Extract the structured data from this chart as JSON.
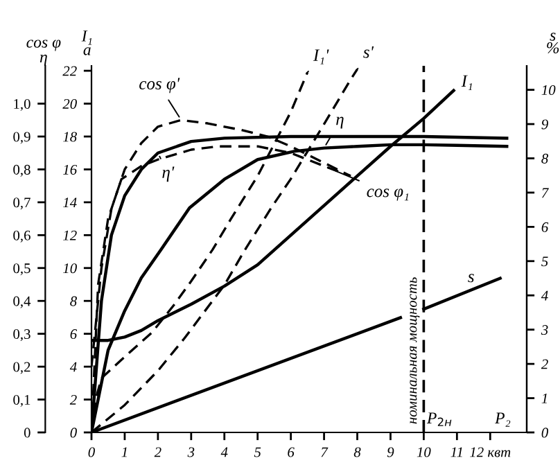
{
  "chart_data": {
    "type": "line",
    "xlim": [
      0,
      13.1
    ],
    "xticks": [
      0,
      1,
      2,
      3,
      4,
      5,
      6,
      7,
      8,
      9,
      10,
      11,
      {
        "value": 12,
        "label": "12 квт"
      }
    ],
    "ylabel": "I₁\nа",
    "ylim": [
      0,
      22.3
    ],
    "yticks": [
      0,
      2,
      4,
      6,
      8,
      10,
      12,
      14,
      16,
      18,
      20,
      22
    ],
    "y2label": "s\n%",
    "y2lim": [
      0,
      10.7
    ],
    "y2ticks": [
      0,
      1,
      2,
      3,
      4,
      5,
      6,
      7,
      8,
      9,
      10
    ],
    "y3label": "cos φ\nη",
    "y3lim": [
      0,
      1.115
    ],
    "y3ticks": [
      0,
      {
        "value": 0.1,
        "label": "0,1"
      },
      {
        "value": 0.2,
        "label": "0,2"
      },
      {
        "value": 0.3,
        "label": "0,3"
      },
      {
        "value": 0.4,
        "label": "0,4"
      },
      {
        "value": 0.5,
        "label": "0,5"
      },
      {
        "value": 0.6,
        "label": "0,6"
      },
      {
        "value": 0.7,
        "label": "0,7"
      },
      {
        "value": 0.8,
        "label": "0,8"
      },
      {
        "value": 0.9,
        "label": "0,9"
      },
      {
        "value": 1.0,
        "label": "1,0"
      }
    ],
    "grid": false,
    "marker": "none",
    "series": [
      {
        "name": "I₁",
        "color": "#000000",
        "line_style": "solid",
        "x": [
          0,
          0.5,
          1,
          1.5,
          2,
          3,
          4,
          5,
          6,
          7,
          8,
          9,
          10,
          10.9
        ],
        "values": [
          5.6,
          5.6,
          5.8,
          6.2,
          6.8,
          7.8,
          8.9,
          10.2,
          12.0,
          13.8,
          15.6,
          17.4,
          19.1,
          20.8
        ]
      },
      {
        "name": "I₁'",
        "color": "#000000",
        "line_style": "dashed",
        "x": [
          0,
          0.15,
          0.3,
          1,
          1.83,
          2.5,
          3,
          3.64,
          4.2,
          5,
          6,
          6.5
        ],
        "values": [
          0,
          2.2,
          3.3,
          4.6,
          6.1,
          7.8,
          9.2,
          11.1,
          13.0,
          15.6,
          19.5,
          21.9
        ]
      },
      {
        "name": "s",
        "color": "#000000",
        "line_style": "solid",
        "axis": "y2",
        "x": [
          0,
          9.3,
          9.6,
          10,
          12.3
        ],
        "values": [
          0,
          3.35,
          null,
          3.6,
          4.5
        ]
      },
      {
        "name": "s'",
        "color": "#000000",
        "line_style": "dashed",
        "axis": "y2",
        "x": [
          0,
          1,
          2,
          2.8,
          4,
          4.6,
          5.44,
          6,
          7,
          7.8,
          8.0
        ],
        "values": [
          0,
          0.8,
          1.8,
          2.75,
          4.3,
          5.3,
          6.6,
          7.4,
          9.0,
          10.3,
          10.6
        ]
      },
      {
        "name": "η'",
        "color": "#000000",
        "line_style": "solid",
        "axis": "y3",
        "x": [
          0,
          0.3,
          0.6,
          1,
          1.5,
          2,
          3,
          4,
          6,
          8,
          10,
          12.5
        ],
        "values": [
          0,
          0.4,
          0.6,
          0.72,
          0.8,
          0.85,
          0.885,
          0.895,
          0.9,
          0.9,
          0.9,
          0.895
        ]
      },
      {
        "name": "η",
        "color": "#000000",
        "line_style": "solid",
        "axis": "y3",
        "x": [
          0,
          0.5,
          1,
          1.5,
          2.1,
          2.95,
          4,
          5,
          6.1,
          7,
          8,
          9,
          10,
          11,
          12.5
        ],
        "values": [
          0,
          0.25,
          0.37,
          0.47,
          0.557,
          0.683,
          0.77,
          0.83,
          0.855,
          0.865,
          0.87,
          0.875,
          0.875,
          0.873,
          0.87
        ]
      },
      {
        "name": "cos φ'",
        "color": "#000000",
        "line_style": "dashed",
        "axis": "y3",
        "x": [
          0,
          0.2,
          0.5,
          1,
          1.5,
          2,
          2.7,
          3.5,
          4.5,
          5.3,
          6,
          7,
          7.8
        ],
        "values": [
          0,
          0.45,
          0.65,
          0.8,
          0.88,
          0.93,
          0.95,
          0.94,
          0.92,
          0.9,
          0.87,
          0.82,
          0.78
        ]
      },
      {
        "name": "cos φ₁",
        "color": "#000000",
        "line_style": "dashed",
        "axis": "y3",
        "x": [
          0,
          0.3,
          0.6,
          0.9,
          1.5,
          2,
          3,
          3.8,
          5,
          6,
          7,
          7.8
        ],
        "values": [
          0.2,
          0.5,
          0.68,
          0.77,
          0.81,
          0.83,
          0.86,
          0.87,
          0.87,
          0.85,
          0.81,
          0.78
        ]
      }
    ],
    "ref_lines": [
      {
        "axis": "x",
        "value": 10,
        "label": "номинальная мощность",
        "color": "#000000",
        "line_style": "dashed"
      }
    ],
    "annotations": [
      "P$_{2н}$",
      "P₂"
    ]
  }
}
